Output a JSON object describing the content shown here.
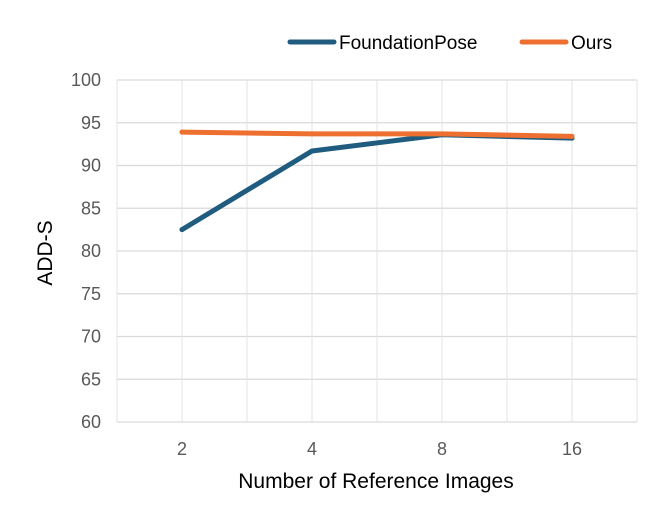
{
  "chart_data": {
    "type": "line",
    "categories": [
      "2",
      "4",
      "8",
      "16"
    ],
    "series": [
      {
        "name": "FoundationPose",
        "values": [
          82.5,
          91.7,
          93.6,
          93.2
        ],
        "color": "#1f5c7f"
      },
      {
        "name": "Ours",
        "values": [
          93.9,
          93.7,
          93.7,
          93.4
        ],
        "color": "#ed7031"
      }
    ],
    "xlabel": "Number of Reference Images",
    "ylabel": "ADD-S",
    "ylim": [
      60,
      100
    ],
    "yticks": [
      "60",
      "65",
      "70",
      "75",
      "80",
      "85",
      "90",
      "95",
      "100"
    ],
    "grid": true,
    "legend_position": "top-right"
  }
}
